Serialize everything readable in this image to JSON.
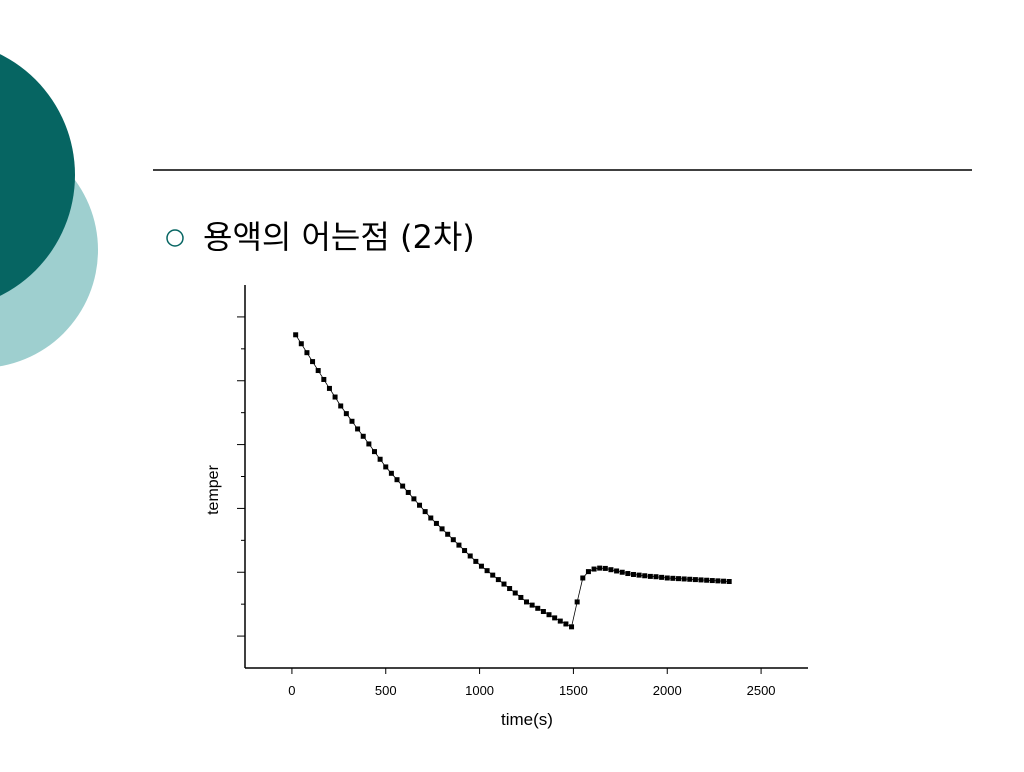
{
  "slide": {
    "title": "용액의 어는점 (2차)"
  },
  "chart_data": {
    "type": "scatter",
    "x_label": "time(s)",
    "y_label": "temper",
    "x": [
      20,
      50,
      80,
      110,
      140,
      170,
      200,
      230,
      260,
      290,
      320,
      350,
      380,
      410,
      440,
      470,
      500,
      530,
      560,
      590,
      620,
      650,
      680,
      710,
      740,
      770,
      800,
      830,
      860,
      890,
      920,
      950,
      980,
      1010,
      1040,
      1070,
      1100,
      1130,
      1160,
      1190,
      1220,
      1250,
      1280,
      1310,
      1340,
      1370,
      1400,
      1430,
      1460,
      1490,
      1520,
      1550,
      1580,
      1610,
      1640,
      1670,
      1700,
      1730,
      1760,
      1790,
      1820,
      1850,
      1880,
      1910,
      1940,
      1970,
      2000,
      2030,
      2060,
      2090,
      2120,
      2150,
      2180,
      2210,
      2240,
      2270,
      2300,
      2330
    ],
    "series": [
      {
        "color": "#000000",
        "values": [
          10.44,
          10.16,
          9.88,
          9.6,
          9.32,
          9.04,
          8.76,
          8.49,
          8.21,
          7.97,
          7.73,
          7.49,
          7.26,
          7.02,
          6.78,
          6.54,
          6.3,
          6.1,
          5.9,
          5.7,
          5.5,
          5.3,
          5.1,
          4.9,
          4.7,
          4.53,
          4.36,
          4.19,
          4.02,
          3.85,
          3.68,
          3.51,
          3.34,
          3.19,
          3.05,
          2.91,
          2.77,
          2.63,
          2.49,
          2.35,
          2.21,
          2.07,
          1.97,
          1.87,
          1.77,
          1.67,
          1.57,
          1.47,
          1.38,
          1.29,
          2.07,
          2.82,
          3.02,
          3.1,
          3.13,
          3.12,
          3.08,
          3.04,
          3,
          2.96,
          2.93,
          2.91,
          2.89,
          2.87,
          2.86,
          2.84,
          2.82,
          2.81,
          2.8,
          2.79,
          2.78,
          2.77,
          2.76,
          2.75,
          2.74,
          2.73,
          2.72,
          2.71
        ]
      }
    ],
    "xlim": [
      -250,
      2750
    ],
    "xticks": [
      0,
      500,
      1000,
      1500,
      2000,
      2500
    ],
    "ylim": [
      0,
      12
    ],
    "yticks": [
      1,
      2,
      3,
      4,
      5,
      6,
      7,
      8,
      9,
      10,
      11
    ]
  }
}
